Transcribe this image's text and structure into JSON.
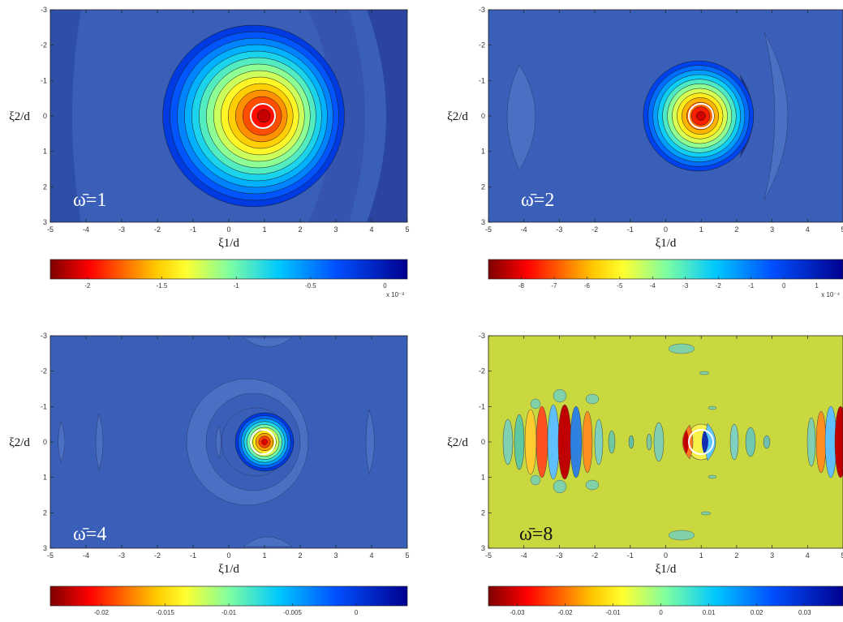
{
  "chart_data": [
    {
      "type": "heatmap",
      "panel_label": "ω̄=1",
      "xlabel": "ξ1/d",
      "ylabel": "ξ2/d",
      "x_ticks": [
        -5,
        -4,
        -3,
        -2,
        -1,
        0,
        1,
        2,
        3,
        4,
        5
      ],
      "y_ticks": [
        -3,
        -2,
        -1,
        0,
        1,
        2,
        3
      ],
      "xlim": [
        -5,
        5
      ],
      "ylim": [
        -3,
        3
      ],
      "y_axis_reversed": true,
      "source_center": [
        1,
        0
      ],
      "colorbar": {
        "range": [
          -2.25,
          0.15
        ],
        "ticks": [
          -2,
          -1.5,
          -1,
          -0.5,
          0
        ],
        "tick_labels": [
          "-2",
          "-1.5",
          "-1",
          "-0.5",
          "0"
        ],
        "exponent_label": "x 10⁻³",
        "colormap": "jet-reversed"
      },
      "peak_value": -2.25,
      "background_value": -0.2
    },
    {
      "type": "heatmap",
      "panel_label": "ω̄=2",
      "xlabel": "ξ1/d",
      "ylabel": "ξ2/d",
      "x_ticks": [
        -5,
        -4,
        -3,
        -2,
        -1,
        0,
        1,
        2,
        3,
        4,
        5
      ],
      "y_ticks": [
        -3,
        -2,
        -1,
        0,
        1,
        2,
        3
      ],
      "xlim": [
        -5,
        5
      ],
      "ylim": [
        -3,
        3
      ],
      "y_axis_reversed": true,
      "source_center": [
        1,
        0
      ],
      "colorbar": {
        "range": [
          -9,
          1.8
        ],
        "ticks": [
          -8,
          -7,
          -6,
          -5,
          -4,
          -3,
          -2,
          -1,
          0,
          1
        ],
        "tick_labels": [
          "-8",
          "-7",
          "-6",
          "-5",
          "-4",
          "-3",
          "-2",
          "-1",
          "0",
          "1"
        ],
        "exponent_label": "x 10⁻⁴",
        "colormap": "jet-reversed"
      },
      "peak_value": -9,
      "background_value": 0
    },
    {
      "type": "heatmap",
      "panel_label": "ω̄=4",
      "xlabel": "ξ1/d",
      "ylabel": "ξ2/d",
      "x_ticks": [
        -5,
        -4,
        -3,
        -2,
        -1,
        0,
        1,
        2,
        3,
        4,
        5
      ],
      "y_ticks": [
        -3,
        -2,
        -1,
        0,
        1,
        2,
        3
      ],
      "xlim": [
        -5,
        5
      ],
      "ylim": [
        -3,
        3
      ],
      "y_axis_reversed": true,
      "source_center": [
        1,
        0
      ],
      "colorbar": {
        "range": [
          -0.024,
          0.004
        ],
        "ticks": [
          -0.02,
          -0.015,
          -0.01,
          -0.005,
          0
        ],
        "tick_labels": [
          "-0.02",
          "-0.015",
          "-0.01",
          "-0.005",
          "0"
        ],
        "exponent_label": "",
        "colormap": "jet-reversed"
      },
      "peak_value": -0.024,
      "background_value": 0
    },
    {
      "type": "heatmap",
      "panel_label": "ω̄=8",
      "xlabel": "ξ1/d",
      "ylabel": "ξ2/d",
      "x_ticks": [
        -5,
        -4,
        -3,
        -2,
        -1,
        0,
        1,
        2,
        3,
        4,
        5
      ],
      "y_ticks": [
        -3,
        -2,
        -1,
        0,
        1,
        2,
        3
      ],
      "xlim": [
        -5,
        5
      ],
      "ylim": [
        -3,
        3
      ],
      "y_axis_reversed": true,
      "source_center": [
        1,
        0
      ],
      "colorbar": {
        "range": [
          -0.036,
          0.038
        ],
        "ticks": [
          -0.03,
          -0.02,
          -0.01,
          0,
          0.01,
          0.02,
          0.03
        ],
        "tick_labels": [
          "-0.03",
          "-0.02",
          "-0.01",
          "0",
          "0.01",
          "0.02",
          "0.03"
        ],
        "exponent_label": "",
        "colormap": "jet-reversed"
      },
      "peak_value": -0.036,
      "background_value": 0
    }
  ]
}
